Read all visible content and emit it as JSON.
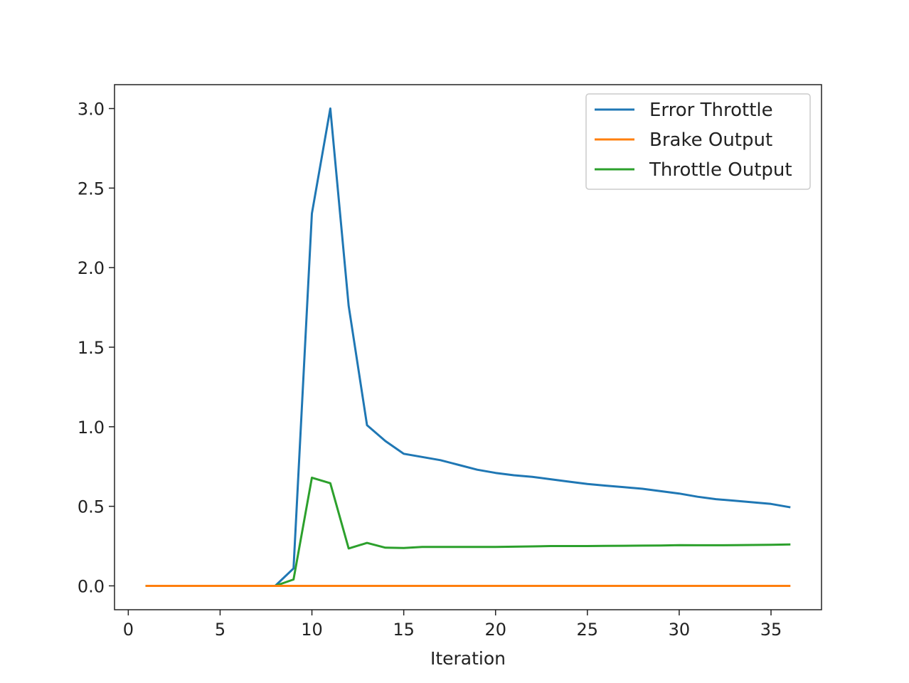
{
  "chart_data": {
    "type": "line",
    "title": "",
    "xlabel": "Iteration",
    "ylabel": "",
    "xlim": [
      -0.75,
      37.75
    ],
    "ylim": [
      -0.15,
      3.15
    ],
    "x_ticks": [
      0,
      5,
      10,
      15,
      20,
      25,
      30,
      35
    ],
    "y_ticks": [
      0.0,
      0.5,
      1.0,
      1.5,
      2.0,
      2.5,
      3.0
    ],
    "grid": false,
    "legend_position": "top-right",
    "x": [
      1,
      2,
      3,
      4,
      5,
      6,
      7,
      8,
      9,
      10,
      11,
      12,
      13,
      14,
      15,
      16,
      17,
      18,
      19,
      20,
      21,
      22,
      23,
      24,
      25,
      26,
      27,
      28,
      29,
      30,
      31,
      32,
      33,
      34,
      35,
      36
    ],
    "series": [
      {
        "name": "Error Throttle",
        "color": "#1f77b4",
        "values": [
          0,
          0,
          0,
          0,
          0,
          0,
          0,
          0,
          0.11,
          2.34,
          3.0,
          1.76,
          1.01,
          0.91,
          0.83,
          0.81,
          0.79,
          0.76,
          0.73,
          0.71,
          0.695,
          0.685,
          0.67,
          0.655,
          0.64,
          0.63,
          0.62,
          0.61,
          0.595,
          0.58,
          0.56,
          0.545,
          0.535,
          0.525,
          0.515,
          0.495
        ]
      },
      {
        "name": "Brake Output",
        "color": "#ff7f0e",
        "values": [
          0,
          0,
          0,
          0,
          0,
          0,
          0,
          0,
          0,
          0,
          0,
          0,
          0,
          0,
          0,
          0,
          0,
          0,
          0,
          0,
          0,
          0,
          0,
          0,
          0,
          0,
          0,
          0,
          0,
          0,
          0,
          0,
          0,
          0,
          0,
          0
        ]
      },
      {
        "name": "Throttle Output",
        "color": "#2ca02c",
        "values": [
          0,
          0,
          0,
          0,
          0,
          0,
          0,
          0,
          0.04,
          0.68,
          0.645,
          0.235,
          0.27,
          0.24,
          0.238,
          0.245,
          0.245,
          0.245,
          0.245,
          0.245,
          0.246,
          0.248,
          0.25,
          0.25,
          0.25,
          0.251,
          0.252,
          0.253,
          0.254,
          0.256,
          0.255,
          0.255,
          0.256,
          0.257,
          0.258,
          0.26
        ]
      }
    ]
  }
}
